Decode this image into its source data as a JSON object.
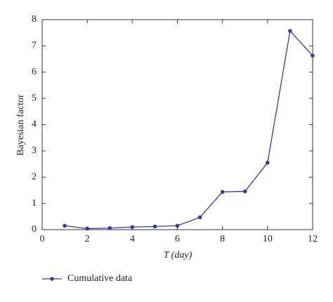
{
  "chart_data": {
    "type": "line",
    "x_label": "T (day)",
    "y_label": "Bayesian factor",
    "x": [
      1,
      2,
      3,
      4,
      5,
      6,
      7,
      8,
      9,
      10,
      11,
      12
    ],
    "series": [
      {
        "name": "Cumulative data",
        "color": "#3a3a9a",
        "values": [
          0.15,
          0.04,
          0.06,
          0.1,
          0.12,
          0.15,
          0.47,
          1.44,
          1.46,
          2.55,
          7.57,
          6.63
        ]
      }
    ],
    "xlim": [
      0,
      12
    ],
    "xticks": [
      0,
      2,
      4,
      6,
      8,
      10,
      12
    ],
    "ylim": [
      0,
      8
    ],
    "yticks": [
      0,
      1,
      2,
      3,
      4,
      5,
      6,
      7,
      8
    ],
    "legend": "bottom-left"
  }
}
